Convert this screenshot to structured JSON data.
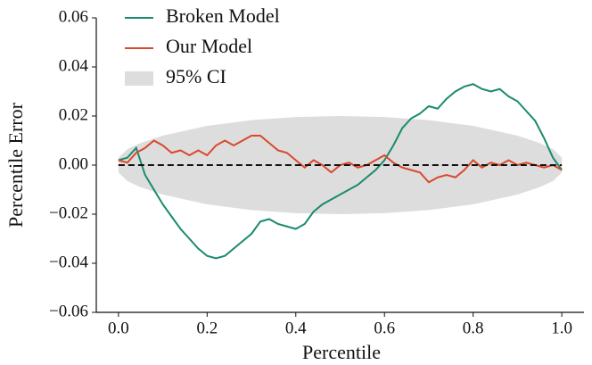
{
  "chart_data": {
    "type": "line",
    "xlabel": "Percentile",
    "ylabel": "Percentile Error",
    "xlim": [
      -0.05,
      1.05
    ],
    "ylim": [
      -0.06,
      0.06
    ],
    "xticks": [
      {
        "value": 0,
        "label": "0.0"
      },
      0.2,
      0.4,
      0.6,
      0.8,
      {
        "value": 1,
        "label": "1.0"
      }
    ],
    "yticks": [
      {
        "value": -0.06,
        "label": "−0.06"
      },
      {
        "value": -0.04,
        "label": "−0.04"
      },
      {
        "value": -0.02,
        "label": "−0.02"
      },
      {
        "value": 0,
        "label": "0.00"
      },
      {
        "value": 0.02,
        "label": "0.02"
      },
      {
        "value": 0.04,
        "label": "0.04"
      },
      {
        "value": 0.06,
        "label": "0.06"
      }
    ],
    "hline": 0,
    "legend": "upper left",
    "x": [
      0,
      0.02,
      0.04,
      0.06,
      0.08,
      0.1,
      0.12,
      0.14,
      0.16,
      0.18,
      0.2,
      0.22,
      0.24,
      0.26,
      0.28,
      0.3,
      0.32,
      0.34,
      0.36,
      0.38,
      0.4,
      0.42,
      0.44,
      0.46,
      0.48,
      0.5,
      0.52,
      0.54,
      0.56,
      0.58,
      0.6,
      0.62,
      0.64,
      0.66,
      0.68,
      0.7,
      0.72,
      0.74,
      0.76,
      0.78,
      0.8,
      0.82,
      0.84,
      0.86,
      0.88,
      0.9,
      0.92,
      0.94,
      0.96,
      0.98,
      1
    ],
    "series": [
      {
        "name": "Broken Model",
        "color": "#1a8a6e",
        "values": [
          0.002,
          0.003,
          0.007,
          -0.004,
          -0.01,
          -0.016,
          -0.021,
          -0.026,
          -0.03,
          -0.034,
          -0.037,
          -0.038,
          -0.037,
          -0.034,
          -0.031,
          -0.028,
          -0.023,
          -0.022,
          -0.024,
          -0.025,
          -0.026,
          -0.024,
          -0.019,
          -0.016,
          -0.014,
          -0.012,
          -0.01,
          -0.008,
          -0.005,
          -0.002,
          0.002,
          0.008,
          0.015,
          0.019,
          0.021,
          0.024,
          0.023,
          0.027,
          0.03,
          0.032,
          0.033,
          0.031,
          0.03,
          0.031,
          0.028,
          0.026,
          0.022,
          0.018,
          0.011,
          0.003,
          -0.002
        ]
      },
      {
        "name": "Our Model",
        "color": "#d9482b",
        "values": [
          0.002,
          0.001,
          0.005,
          0.007,
          0.01,
          0.008,
          0.005,
          0.006,
          0.004,
          0.006,
          0.004,
          0.008,
          0.01,
          0.008,
          0.01,
          0.012,
          0.012,
          0.009,
          0.006,
          0.005,
          0.002,
          -0.001,
          0.002,
          0,
          -0.003,
          0,
          0.001,
          -0.001,
          0,
          0.002,
          0.004,
          0.001,
          -0.001,
          -0.002,
          -0.003,
          -0.007,
          -0.005,
          -0.004,
          -0.005,
          -0.002,
          0.002,
          -0.001,
          0.001,
          0,
          0.002,
          0,
          0.001,
          0,
          -0.001,
          0,
          -0.002
        ]
      }
    ],
    "band": {
      "name": "95% CI",
      "color": "#dddddd",
      "x": [
        0,
        0.02,
        0.05,
        0.1,
        0.2,
        0.3,
        0.4,
        0.5,
        0.6,
        0.7,
        0.8,
        0.9,
        0.95,
        0.98,
        1
      ],
      "upper": [
        0.003,
        0.0065,
        0.009,
        0.012,
        0.016,
        0.0183,
        0.0196,
        0.02,
        0.0196,
        0.0183,
        0.016,
        0.012,
        0.009,
        0.0065,
        0.003
      ],
      "lower": [
        -0.003,
        -0.0065,
        -0.009,
        -0.012,
        -0.016,
        -0.0183,
        -0.0196,
        -0.02,
        -0.0196,
        -0.0183,
        -0.016,
        -0.012,
        -0.009,
        -0.0065,
        -0.003
      ]
    }
  }
}
